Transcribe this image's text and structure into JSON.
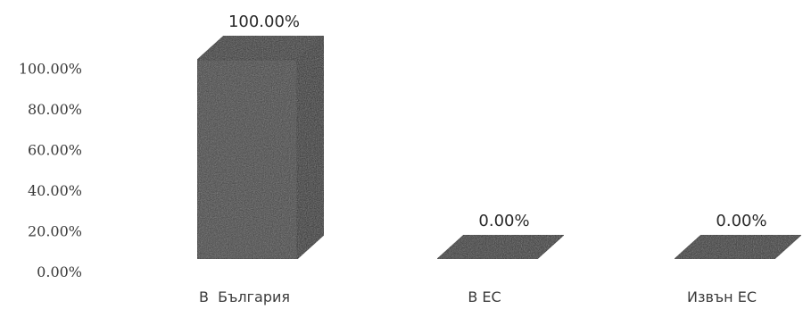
{
  "chart_data": {
    "type": "bar",
    "categories": [
      "В  България",
      "В ЕС",
      "Извън ЕС"
    ],
    "values": [
      100.0,
      0.0,
      0.0
    ],
    "data_labels": [
      "100.00%",
      "0.00%",
      "0.00%"
    ],
    "y_ticks": [
      "0.00%",
      "20.00%",
      "40.00%",
      "60.00%",
      "80.00%",
      "100.00%"
    ],
    "ylim": [
      0,
      100
    ],
    "three_d": true,
    "grid": false,
    "legend": "none",
    "bar_color": "#3d3d3d"
  }
}
